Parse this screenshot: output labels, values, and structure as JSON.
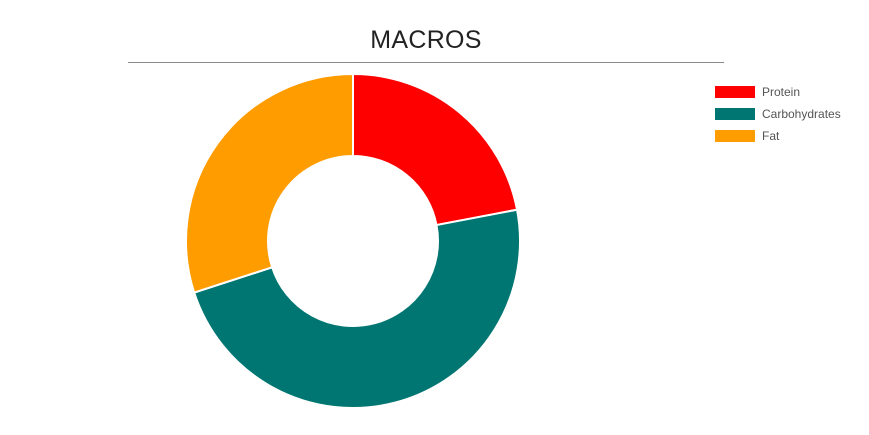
{
  "chart_data": {
    "type": "pie",
    "donut": true,
    "title": "MACROS",
    "series": [
      {
        "name": "Protein",
        "value": 22,
        "color": "#ff0000"
      },
      {
        "name": "Carbohydrates",
        "value": 48,
        "color": "#007672"
      },
      {
        "name": "Fat",
        "value": 30,
        "color": "#ff9c00"
      }
    ],
    "legend": "top-right"
  }
}
